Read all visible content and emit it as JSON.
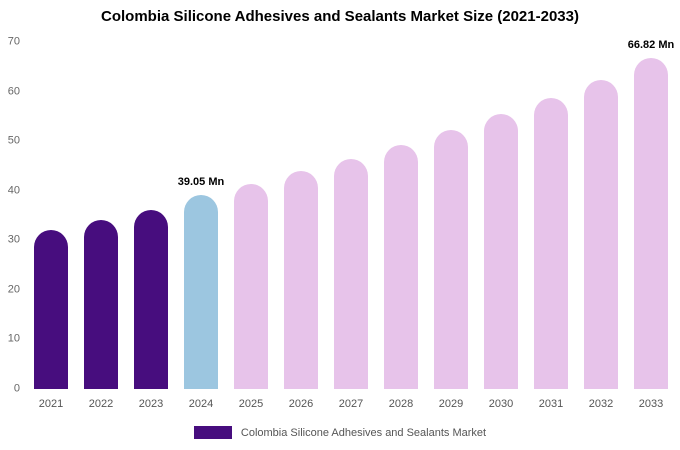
{
  "chart_data": {
    "type": "bar",
    "title": "Colombia Silicone Adhesives and Sealants Market Size (2021-2033)",
    "xlabel": "",
    "ylabel": "",
    "ylim": [
      0,
      70
    ],
    "yticks": [
      0,
      10,
      20,
      30,
      40,
      50,
      60,
      70
    ],
    "grid": false,
    "legend_position": "bottom",
    "categories": [
      "2021",
      "2022",
      "2023",
      "2024",
      "2025",
      "2026",
      "2027",
      "2028",
      "2029",
      "2030",
      "2031",
      "2032",
      "2033"
    ],
    "values": [
      32.0,
      34.1,
      36.1,
      39.05,
      41.4,
      43.9,
      46.3,
      49.2,
      52.2,
      55.4,
      58.8,
      62.4,
      66.82
    ],
    "color_roles": [
      "historical",
      "historical",
      "historical",
      "highlight",
      "forecast",
      "forecast",
      "forecast",
      "forecast",
      "forecast",
      "forecast",
      "forecast",
      "forecast",
      "forecast"
    ],
    "colors": {
      "historical": "#470D7E",
      "highlight": "#9CC6E0",
      "forecast": "#E7C3EA"
    },
    "bar_labels": {
      "2024": "39.05 Mn",
      "2033": "66.82 Mn"
    }
  },
  "legend": {
    "label": "Colombia Silicone Adhesives and Sealants Market",
    "swatch_color": "#470D7E"
  }
}
